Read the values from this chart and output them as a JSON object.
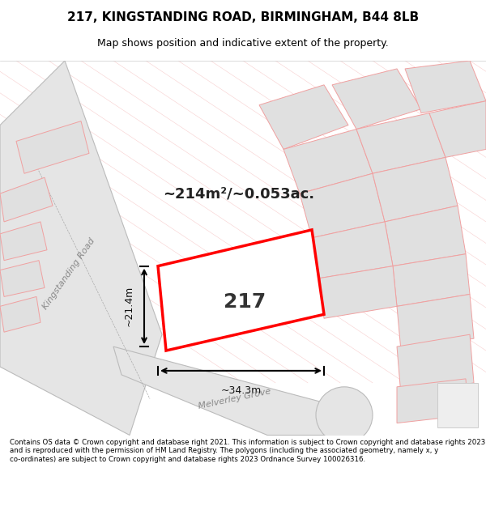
{
  "title_line1": "217, KINGSTANDING ROAD, BIRMINGHAM, B44 8LB",
  "title_line2": "Map shows position and indicative extent of the property.",
  "footer_text": "Contains OS data © Crown copyright and database right 2021. This information is subject to Crown copyright and database rights 2023 and is reproduced with the permission of HM Land Registry. The polygons (including the associated geometry, namely x, y co-ordinates) are subject to Crown copyright and database rights 2023 Ordnance Survey 100026316.",
  "area_label": "~214m²/~0.053ac.",
  "number_label": "217",
  "width_label": "~34.3m",
  "height_label": "~21.4m",
  "bg_color": "#f5f5f5",
  "map_bg": "#ffffff",
  "road_fill": "#e8e8e8",
  "building_fill": "#d8d8d8",
  "building_stroke": "#c0c0c0",
  "highlight_fill": "none",
  "highlight_stroke": "#ff0000",
  "road_outline": "#cccccc",
  "pink_line": "#f0a0a0",
  "street_label1": "Kingstanding Road",
  "street_label2": "Melverley Grove"
}
